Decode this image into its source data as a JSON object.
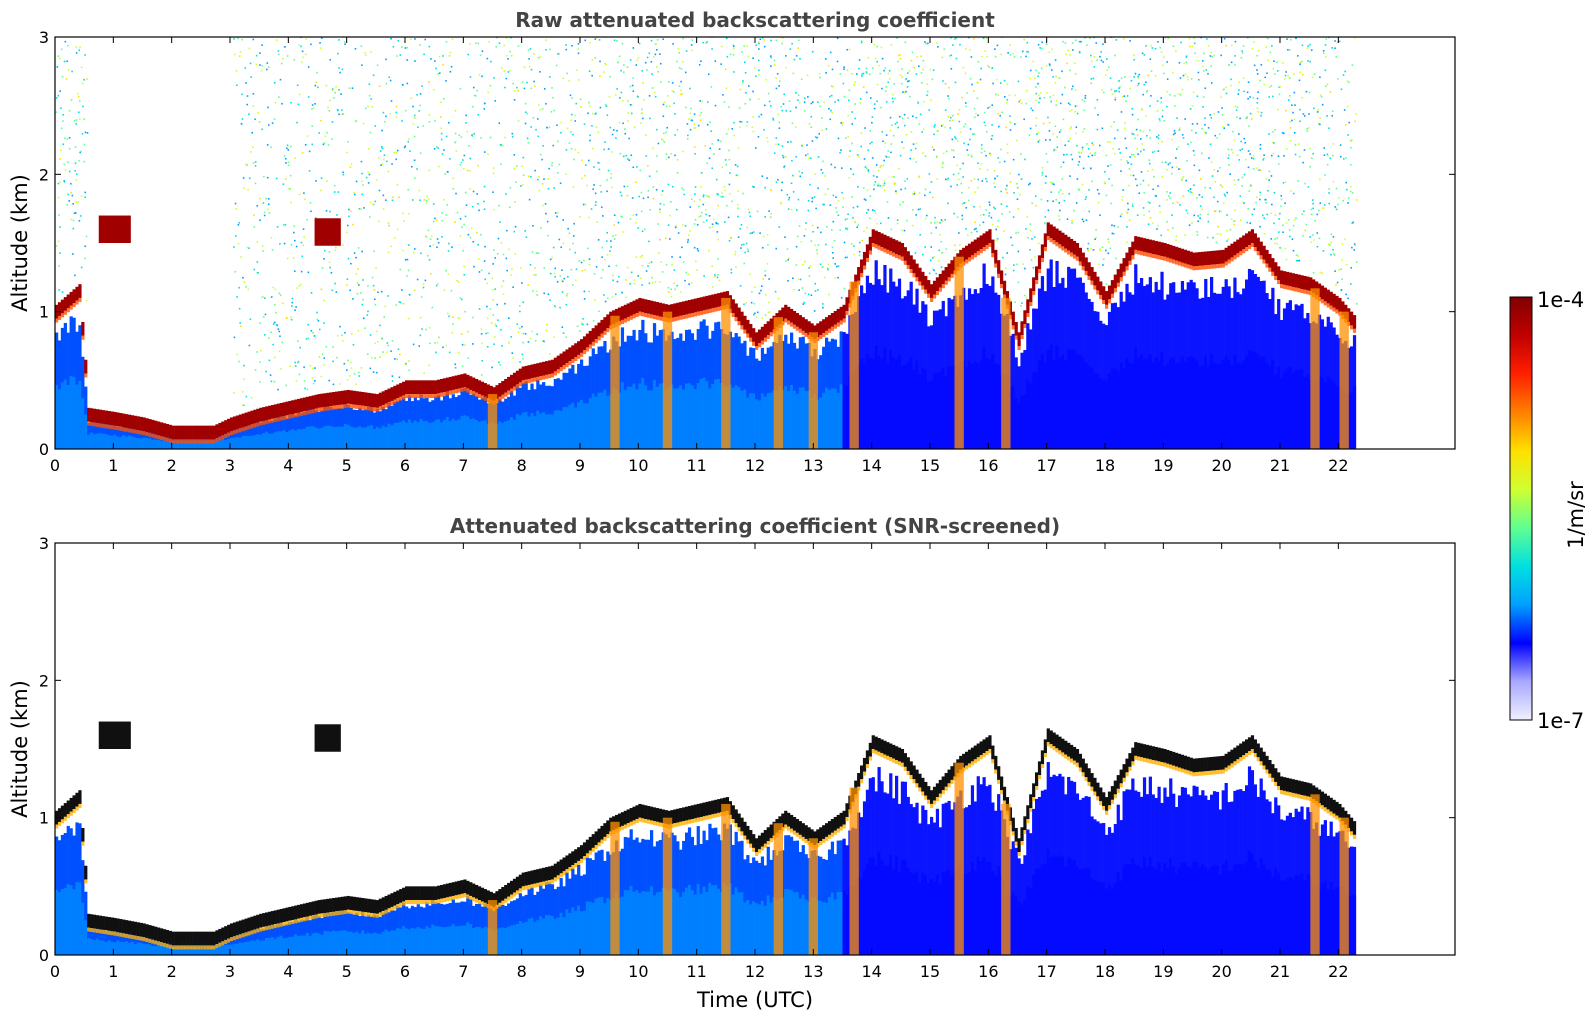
{
  "chart_data": [
    {
      "type": "heatmap",
      "title": "Raw attenuated backscattering coefficient",
      "xlabel": "",
      "ylabel": "Altitude (km)",
      "xlim": [
        0,
        24
      ],
      "ylim": [
        0,
        3
      ],
      "xticks": [
        "0",
        "1",
        "2",
        "3",
        "4",
        "5",
        "6",
        "7",
        "8",
        "9",
        "10",
        "11",
        "12",
        "13",
        "14",
        "15",
        "16",
        "17",
        "18",
        "19",
        "20",
        "21",
        "22"
      ],
      "yticks": [
        "0",
        "1",
        "2",
        "3"
      ],
      "data_end_time": 22.3,
      "gap": [
        0.5,
        3.0
      ],
      "layer_top": [
        {
          "t": 0.0,
          "z": 1.0
        },
        {
          "t": 0.4,
          "z": 1.15
        },
        {
          "t": 0.5,
          "z": 0.6
        },
        {
          "t": 0.55,
          "z": 0.25
        },
        {
          "t": 1.0,
          "z": 0.22
        },
        {
          "t": 1.5,
          "z": 0.18
        },
        {
          "t": 2.0,
          "z": 0.12
        },
        {
          "t": 2.7,
          "z": 0.12
        },
        {
          "t": 3.0,
          "z": 0.18
        },
        {
          "t": 3.5,
          "z": 0.25
        },
        {
          "t": 4.0,
          "z": 0.3
        },
        {
          "t": 4.5,
          "z": 0.35
        },
        {
          "t": 5.0,
          "z": 0.38
        },
        {
          "t": 5.5,
          "z": 0.35
        },
        {
          "t": 6.0,
          "z": 0.45
        },
        {
          "t": 6.5,
          "z": 0.45
        },
        {
          "t": 7.0,
          "z": 0.5
        },
        {
          "t": 7.5,
          "z": 0.4
        },
        {
          "t": 8.0,
          "z": 0.55
        },
        {
          "t": 8.5,
          "z": 0.6
        },
        {
          "t": 9.0,
          "z": 0.75
        },
        {
          "t": 9.5,
          "z": 0.95
        },
        {
          "t": 10.0,
          "z": 1.05
        },
        {
          "t": 10.5,
          "z": 1.0
        },
        {
          "t": 11.0,
          "z": 1.05
        },
        {
          "t": 11.5,
          "z": 1.1
        },
        {
          "t": 12.0,
          "z": 0.8
        },
        {
          "t": 12.5,
          "z": 1.0
        },
        {
          "t": 13.0,
          "z": 0.85
        },
        {
          "t": 13.5,
          "z": 1.0
        },
        {
          "t": 14.0,
          "z": 1.55
        },
        {
          "t": 14.5,
          "z": 1.45
        },
        {
          "t": 15.0,
          "z": 1.15
        },
        {
          "t": 15.5,
          "z": 1.4
        },
        {
          "t": 16.0,
          "z": 1.55
        },
        {
          "t": 16.5,
          "z": 0.8
        },
        {
          "t": 17.0,
          "z": 1.6
        },
        {
          "t": 17.5,
          "z": 1.45
        },
        {
          "t": 18.0,
          "z": 1.1
        },
        {
          "t": 18.5,
          "z": 1.5
        },
        {
          "t": 19.0,
          "z": 1.45
        },
        {
          "t": 19.5,
          "z": 1.38
        },
        {
          "t": 20.0,
          "z": 1.4
        },
        {
          "t": 20.5,
          "z": 1.55
        },
        {
          "t": 21.0,
          "z": 1.25
        },
        {
          "t": 21.5,
          "z": 1.2
        },
        {
          "t": 22.0,
          "z": 1.05
        },
        {
          "t": 22.3,
          "z": 0.9
        }
      ],
      "elevated_patches": [
        {
          "t0": 0.75,
          "t1": 1.3,
          "z": 1.6
        },
        {
          "t0": 4.45,
          "t1": 4.9,
          "z": 1.58
        }
      ],
      "vertical_plumes": [
        7.5,
        9.6,
        10.5,
        11.5,
        12.4,
        13.0,
        13.7,
        15.5,
        16.3,
        21.6,
        22.1
      ]
    },
    {
      "type": "heatmap",
      "title": "Attenuated backscattering coefficient (SNR-screened)",
      "xlabel": "Time (UTC)",
      "ylabel": "Altitude (km)",
      "xlim": [
        0,
        24
      ],
      "ylim": [
        0,
        3
      ],
      "xticks": [
        "0",
        "1",
        "2",
        "3",
        "4",
        "5",
        "6",
        "7",
        "8",
        "9",
        "10",
        "11",
        "12",
        "13",
        "14",
        "15",
        "16",
        "17",
        "18",
        "19",
        "20",
        "21",
        "22"
      ],
      "yticks": [
        "0",
        "1",
        "2",
        "3"
      ],
      "data_end_time": 22.3
    }
  ],
  "colorbar": {
    "max_label": "1e-4",
    "min_label": "1e-7",
    "unit_label": "1/m/sr",
    "colors": [
      "#f0f0ff",
      "#a8a8ff",
      "#0000ff",
      "#00a0ff",
      "#00e0e0",
      "#60ff90",
      "#d0ff30",
      "#ffe000",
      "#ff8000",
      "#ff2000",
      "#c00000",
      "#800000"
    ]
  }
}
